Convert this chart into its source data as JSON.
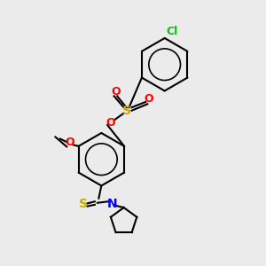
{
  "background_color": "#ebebeb",
  "bond_color": "#000000",
  "atom_colors": {
    "O": "#ff0000",
    "S_sulfonate": "#ccaa00",
    "S_thio": "#ccaa00",
    "N": "#0000ff",
    "Cl": "#00cc00",
    "C": "#000000"
  },
  "line_width": 1.5,
  "font_size": 9
}
